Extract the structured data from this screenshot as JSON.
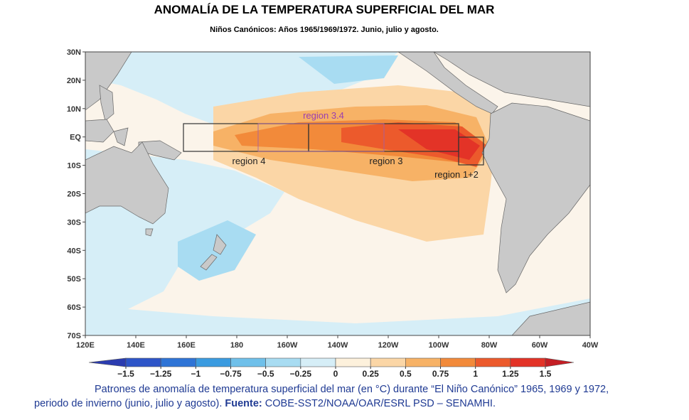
{
  "header": {
    "title": "ANOMALÍA DE LA TEMPERATURA SUPERFICIAL DEL MAR",
    "subtitle": "Niños Canónicos: Años 1965/1969/1972. Junio, julio y agosto."
  },
  "map": {
    "lat_labels": [
      "30N",
      "20N",
      "10N",
      "EQ",
      "10S",
      "20S",
      "30S",
      "40S",
      "50S",
      "60S",
      "70S"
    ],
    "lon_labels": [
      "120E",
      "140E",
      "160E",
      "180",
      "160W",
      "140W",
      "120W",
      "100W",
      "80W",
      "60W",
      "40W"
    ],
    "regions": {
      "r34": "region 3.4",
      "r4": "region 4",
      "r3": "region 3",
      "r12": "region 1+2"
    }
  },
  "colorbar": {
    "ticks": [
      {
        "value": -1.5,
        "label": "−1.5"
      },
      {
        "value": -1.25,
        "label": "−1.25"
      },
      {
        "value": -1,
        "label": "−1"
      },
      {
        "value": -0.75,
        "label": "−0.75"
      },
      {
        "value": -0.5,
        "label": "−0.5"
      },
      {
        "value": -0.25,
        "label": "−0.25"
      },
      0,
      0.25,
      0.5,
      0.75,
      1,
      1.25,
      1.5
    ],
    "colors": [
      "#2b3cb0",
      "#2e55c8",
      "#2f74d6",
      "#3a9be0",
      "#6fc0ea",
      "#a8dcf2",
      "#d6eef7",
      "#fdf1dc",
      "#fbd6a6",
      "#f7b266",
      "#f28a3a",
      "#ec5a2c",
      "#e33327",
      "#c41e24"
    ]
  },
  "caption": {
    "text": "Patrones de anomalía de temperatura superficial del mar (en °C) durante “El Niño Canónico” 1965, 1969 y 1972, periodo de invierno (junio, julio y agosto). ",
    "source_label": "Fuente:",
    "source": " COBE-SST2/NOAA/OAR/ESRL PSD – SENAMHI."
  }
}
